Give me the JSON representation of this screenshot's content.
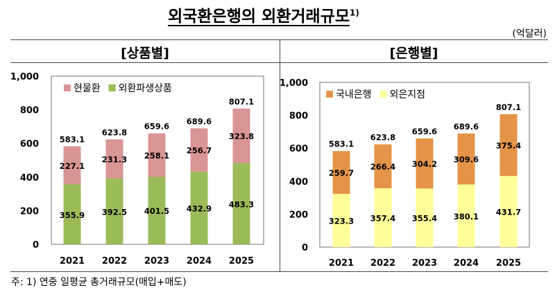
{
  "title": "외국환은행의 외환거래규모",
  "title_sup": "1)",
  "unit": "(억달러)",
  "footnote": "주: 1) 연중 일평균 총거래규모(매입+매도)",
  "chart_data": [
    {
      "type": "bar",
      "stacked": true,
      "panel_title": "[상품별]",
      "categories": [
        "2021",
        "2022",
        "2023",
        "2024",
        "2025"
      ],
      "ylim": [
        0,
        1000
      ],
      "yticks": [
        "0",
        "200",
        "400",
        "600",
        "800",
        "1,000"
      ],
      "grid": false,
      "legend": "top-left",
      "series": [
        {
          "name": "외환파생상품",
          "color": "#9bbb59",
          "values": [
            355.9,
            392.5,
            401.5,
            432.9,
            483.3
          ]
        },
        {
          "name": "현물환",
          "color": "#d99594",
          "values": [
            227.1,
            231.3,
            258.1,
            256.7,
            323.8
          ]
        }
      ],
      "totals": [
        583.1,
        623.8,
        659.6,
        689.6,
        807.1
      ]
    },
    {
      "type": "bar",
      "stacked": true,
      "panel_title": "[은행별]",
      "categories": [
        "2021",
        "2022",
        "2023",
        "2024",
        "2025"
      ],
      "ylim": [
        0,
        1000
      ],
      "yticks": [
        "0",
        "200",
        "400",
        "600",
        "800",
        "1,000"
      ],
      "grid": false,
      "legend": "top-left",
      "series": [
        {
          "name": "외은지점",
          "color": "#ffff99",
          "values": [
            323.3,
            357.4,
            355.4,
            380.1,
            431.7
          ]
        },
        {
          "name": "국내은행",
          "color": "#e59447",
          "values": [
            259.7,
            266.4,
            304.2,
            309.6,
            375.4
          ]
        }
      ],
      "totals": [
        583.1,
        623.8,
        659.6,
        689.6,
        807.1
      ]
    }
  ]
}
